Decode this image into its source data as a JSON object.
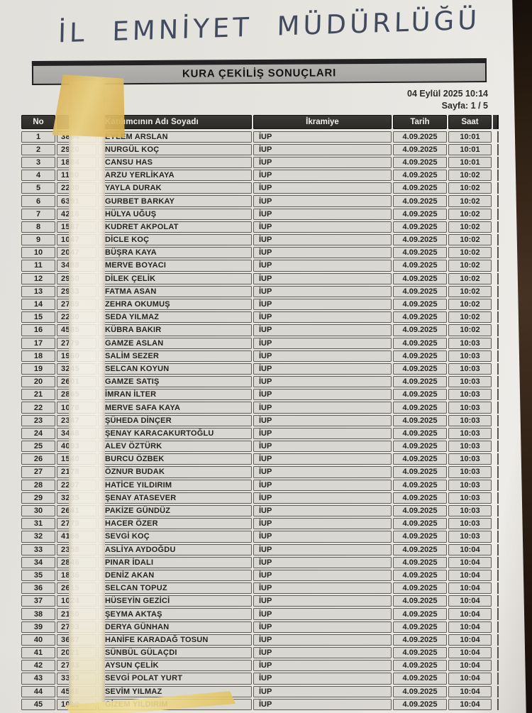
{
  "handwritten_title": "İL EMNİYET MÜDÜRLÜĞÜ",
  "title_box": {
    "label": "KURA ÇEKİLİŞ SONUÇLARI"
  },
  "meta": {
    "datetime": "04 Eylül 2025   10:14",
    "page": "Sayfa: 1 / 5"
  },
  "colors": {
    "paper": "#e6e4df",
    "backdrop_wood": "#2e2015",
    "table_header_bg": "#2b2a27",
    "cell_bg": "#d9d7d2",
    "tape_yellow": "#e0bd5f",
    "handwriting_ink": "#424a5e"
  },
  "table": {
    "columns": [
      "No",
      "",
      "Katılımcının Adı Soyadı",
      "İkramiye",
      "Tarih",
      "Saat"
    ],
    "rows": [
      {
        "no": "1",
        "number": "3804",
        "name": "EYLEM ARSLAN",
        "prize": "İUP",
        "date": "4.09.2025",
        "time": "10:01"
      },
      {
        "no": "2",
        "number": "2920",
        "name": "NURGÜL KOÇ",
        "prize": "İUP",
        "date": "4.09.2025",
        "time": "10:01"
      },
      {
        "no": "3",
        "number": "1884",
        "name": "CANSU HAS",
        "prize": "İUP",
        "date": "4.09.2025",
        "time": "10:01"
      },
      {
        "no": "4",
        "number": "1180",
        "name": "ARZU YERLİKAYA",
        "prize": "İUP",
        "date": "4.09.2025",
        "time": "10:02"
      },
      {
        "no": "5",
        "number": "2230",
        "name": "YAYLA DURAK",
        "prize": "İUP",
        "date": "4.09.2025",
        "time": "10:02"
      },
      {
        "no": "6",
        "number": "6391",
        "name": "GURBET BARKAY",
        "prize": "İUP",
        "date": "4.09.2025",
        "time": "10:02"
      },
      {
        "no": "7",
        "number": "4216",
        "name": "HÜLYA UĞUŞ",
        "prize": "İUP",
        "date": "4.09.2025",
        "time": "10:02"
      },
      {
        "no": "8",
        "number": "1587",
        "name": "KUDRET AKPOLAT",
        "prize": "İUP",
        "date": "4.09.2025",
        "time": "10:02"
      },
      {
        "no": "9",
        "number": "1047",
        "name": "DİCLE KOÇ",
        "prize": "İUP",
        "date": "4.09.2025",
        "time": "10:02"
      },
      {
        "no": "10",
        "number": "2047",
        "name": "BÜŞRA KAYA",
        "prize": "İUP",
        "date": "4.09.2025",
        "time": "10:02"
      },
      {
        "no": "11",
        "number": "3488",
        "name": "MERVE BOYACI",
        "prize": "İUP",
        "date": "4.09.2025",
        "time": "10:02"
      },
      {
        "no": "12",
        "number": "2950",
        "name": "DİLEK ÇELİK",
        "prize": "İUP",
        "date": "4.09.2025",
        "time": "10:02"
      },
      {
        "no": "13",
        "number": "2933",
        "name": "FATMA ASAN",
        "prize": "İUP",
        "date": "4.09.2025",
        "time": "10:02"
      },
      {
        "no": "14",
        "number": "2789",
        "name": "ZEHRA OKUMUŞ",
        "prize": "İUP",
        "date": "4.09.2025",
        "time": "10:02"
      },
      {
        "no": "15",
        "number": "2250",
        "name": "SEDA YILMAZ",
        "prize": "İUP",
        "date": "4.09.2025",
        "time": "10:02"
      },
      {
        "no": "16",
        "number": "4585",
        "name": "KÜBRA BAKIR",
        "prize": "İUP",
        "date": "4.09.2025",
        "time": "10:02"
      },
      {
        "no": "17",
        "number": "2779",
        "name": "GAMZE ASLAN",
        "prize": "İUP",
        "date": "4.09.2025",
        "time": "10:03"
      },
      {
        "no": "18",
        "number": "1960",
        "name": "SALİM SEZER",
        "prize": "İUP",
        "date": "4.09.2025",
        "time": "10:03"
      },
      {
        "no": "19",
        "number": "3245",
        "name": "SELCAN KOYUN",
        "prize": "İUP",
        "date": "4.09.2025",
        "time": "10:03"
      },
      {
        "no": "20",
        "number": "2601",
        "name": "GAMZE SATIŞ",
        "prize": "İUP",
        "date": "4.09.2025",
        "time": "10:03"
      },
      {
        "no": "21",
        "number": "2865",
        "name": "İMRAN İLTER",
        "prize": "İUP",
        "date": "4.09.2025",
        "time": "10:03"
      },
      {
        "no": "22",
        "number": "1078",
        "name": "MERVE SAFA KAYA",
        "prize": "İUP",
        "date": "4.09.2025",
        "time": "10:03"
      },
      {
        "no": "23",
        "number": "2347",
        "name": "ŞÜHEDA DİNÇER",
        "prize": "İUP",
        "date": "4.09.2025",
        "time": "10:03"
      },
      {
        "no": "24",
        "number": "3448",
        "name": "ŞENAY KARACAKURTOĞLU",
        "prize": "İUP",
        "date": "4.09.2025",
        "time": "10:03"
      },
      {
        "no": "25",
        "number": "4093",
        "name": "ALEV ÖZTÜRK",
        "prize": "İUP",
        "date": "4.09.2025",
        "time": "10:03"
      },
      {
        "no": "26",
        "number": "1540",
        "name": "BURCU ÖZBEK",
        "prize": "İUP",
        "date": "4.09.2025",
        "time": "10:03"
      },
      {
        "no": "27",
        "number": "2178",
        "name": "ÖZNUR BUDAK",
        "prize": "İUP",
        "date": "4.09.2025",
        "time": "10:03"
      },
      {
        "no": "28",
        "number": "2207",
        "name": "HATİCE YILDIRIM",
        "prize": "İUP",
        "date": "4.09.2025",
        "time": "10:03"
      },
      {
        "no": "29",
        "number": "3235",
        "name": "ŞENAY ATASEVER",
        "prize": "İUP",
        "date": "4.09.2025",
        "time": "10:03"
      },
      {
        "no": "30",
        "number": "2641",
        "name": "PAKİZE GÜNDÜZ",
        "prize": "İUP",
        "date": "4.09.2025",
        "time": "10:03"
      },
      {
        "no": "31",
        "number": "2779",
        "name": "HACER ÖZER",
        "prize": "İUP",
        "date": "4.09.2025",
        "time": "10:03"
      },
      {
        "no": "32",
        "number": "4166",
        "name": "SEVGİ KOÇ",
        "prize": "İUP",
        "date": "4.09.2025",
        "time": "10:03"
      },
      {
        "no": "33",
        "number": "2358",
        "name": "ASLİYA AYDOĞDU",
        "prize": "İUP",
        "date": "4.09.2025",
        "time": "10:04"
      },
      {
        "no": "34",
        "number": "2846",
        "name": "PINAR İDALI",
        "prize": "İUP",
        "date": "4.09.2025",
        "time": "10:04"
      },
      {
        "no": "35",
        "number": "1836",
        "name": "DENİZ AKAN",
        "prize": "İUP",
        "date": "4.09.2025",
        "time": "10:04"
      },
      {
        "no": "36",
        "number": "2615",
        "name": "SELCAN TOPUZ",
        "prize": "İUP",
        "date": "4.09.2025",
        "time": "10:04"
      },
      {
        "no": "37",
        "number": "1024",
        "name": "HÜSEYİN GEZİCİ",
        "prize": "İUP",
        "date": "4.09.2025",
        "time": "10:04"
      },
      {
        "no": "38",
        "number": "2150",
        "name": "ŞEYMA AKTAŞ",
        "prize": "İUP",
        "date": "4.09.2025",
        "time": "10:04"
      },
      {
        "no": "39",
        "number": "2793",
        "name": "DERYA GÜNHAN",
        "prize": "İUP",
        "date": "4.09.2025",
        "time": "10:04"
      },
      {
        "no": "40",
        "number": "3687",
        "name": "HANİFE KARADAĞ TOSUN",
        "prize": "İUP",
        "date": "4.09.2025",
        "time": "10:04"
      },
      {
        "no": "41",
        "number": "2021",
        "name": "SÜNBÜL GÜLAÇDI",
        "prize": "İUP",
        "date": "4.09.2025",
        "time": "10:04"
      },
      {
        "no": "42",
        "number": "2743",
        "name": "AYSUN ÇELİK",
        "prize": "İUP",
        "date": "4.09.2025",
        "time": "10:04"
      },
      {
        "no": "43",
        "number": "3303",
        "name": "SEVGİ POLAT YURT",
        "prize": "İUP",
        "date": "4.09.2025",
        "time": "10:04"
      },
      {
        "no": "44",
        "number": "4546",
        "name": "SEVİM YILMAZ",
        "prize": "İUP",
        "date": "4.09.2025",
        "time": "10:04"
      },
      {
        "no": "45",
        "number": "1010",
        "name": "GİZEM YILDIRIM",
        "prize": "İUP",
        "date": "4.09.2025",
        "time": "10:04"
      }
    ]
  }
}
